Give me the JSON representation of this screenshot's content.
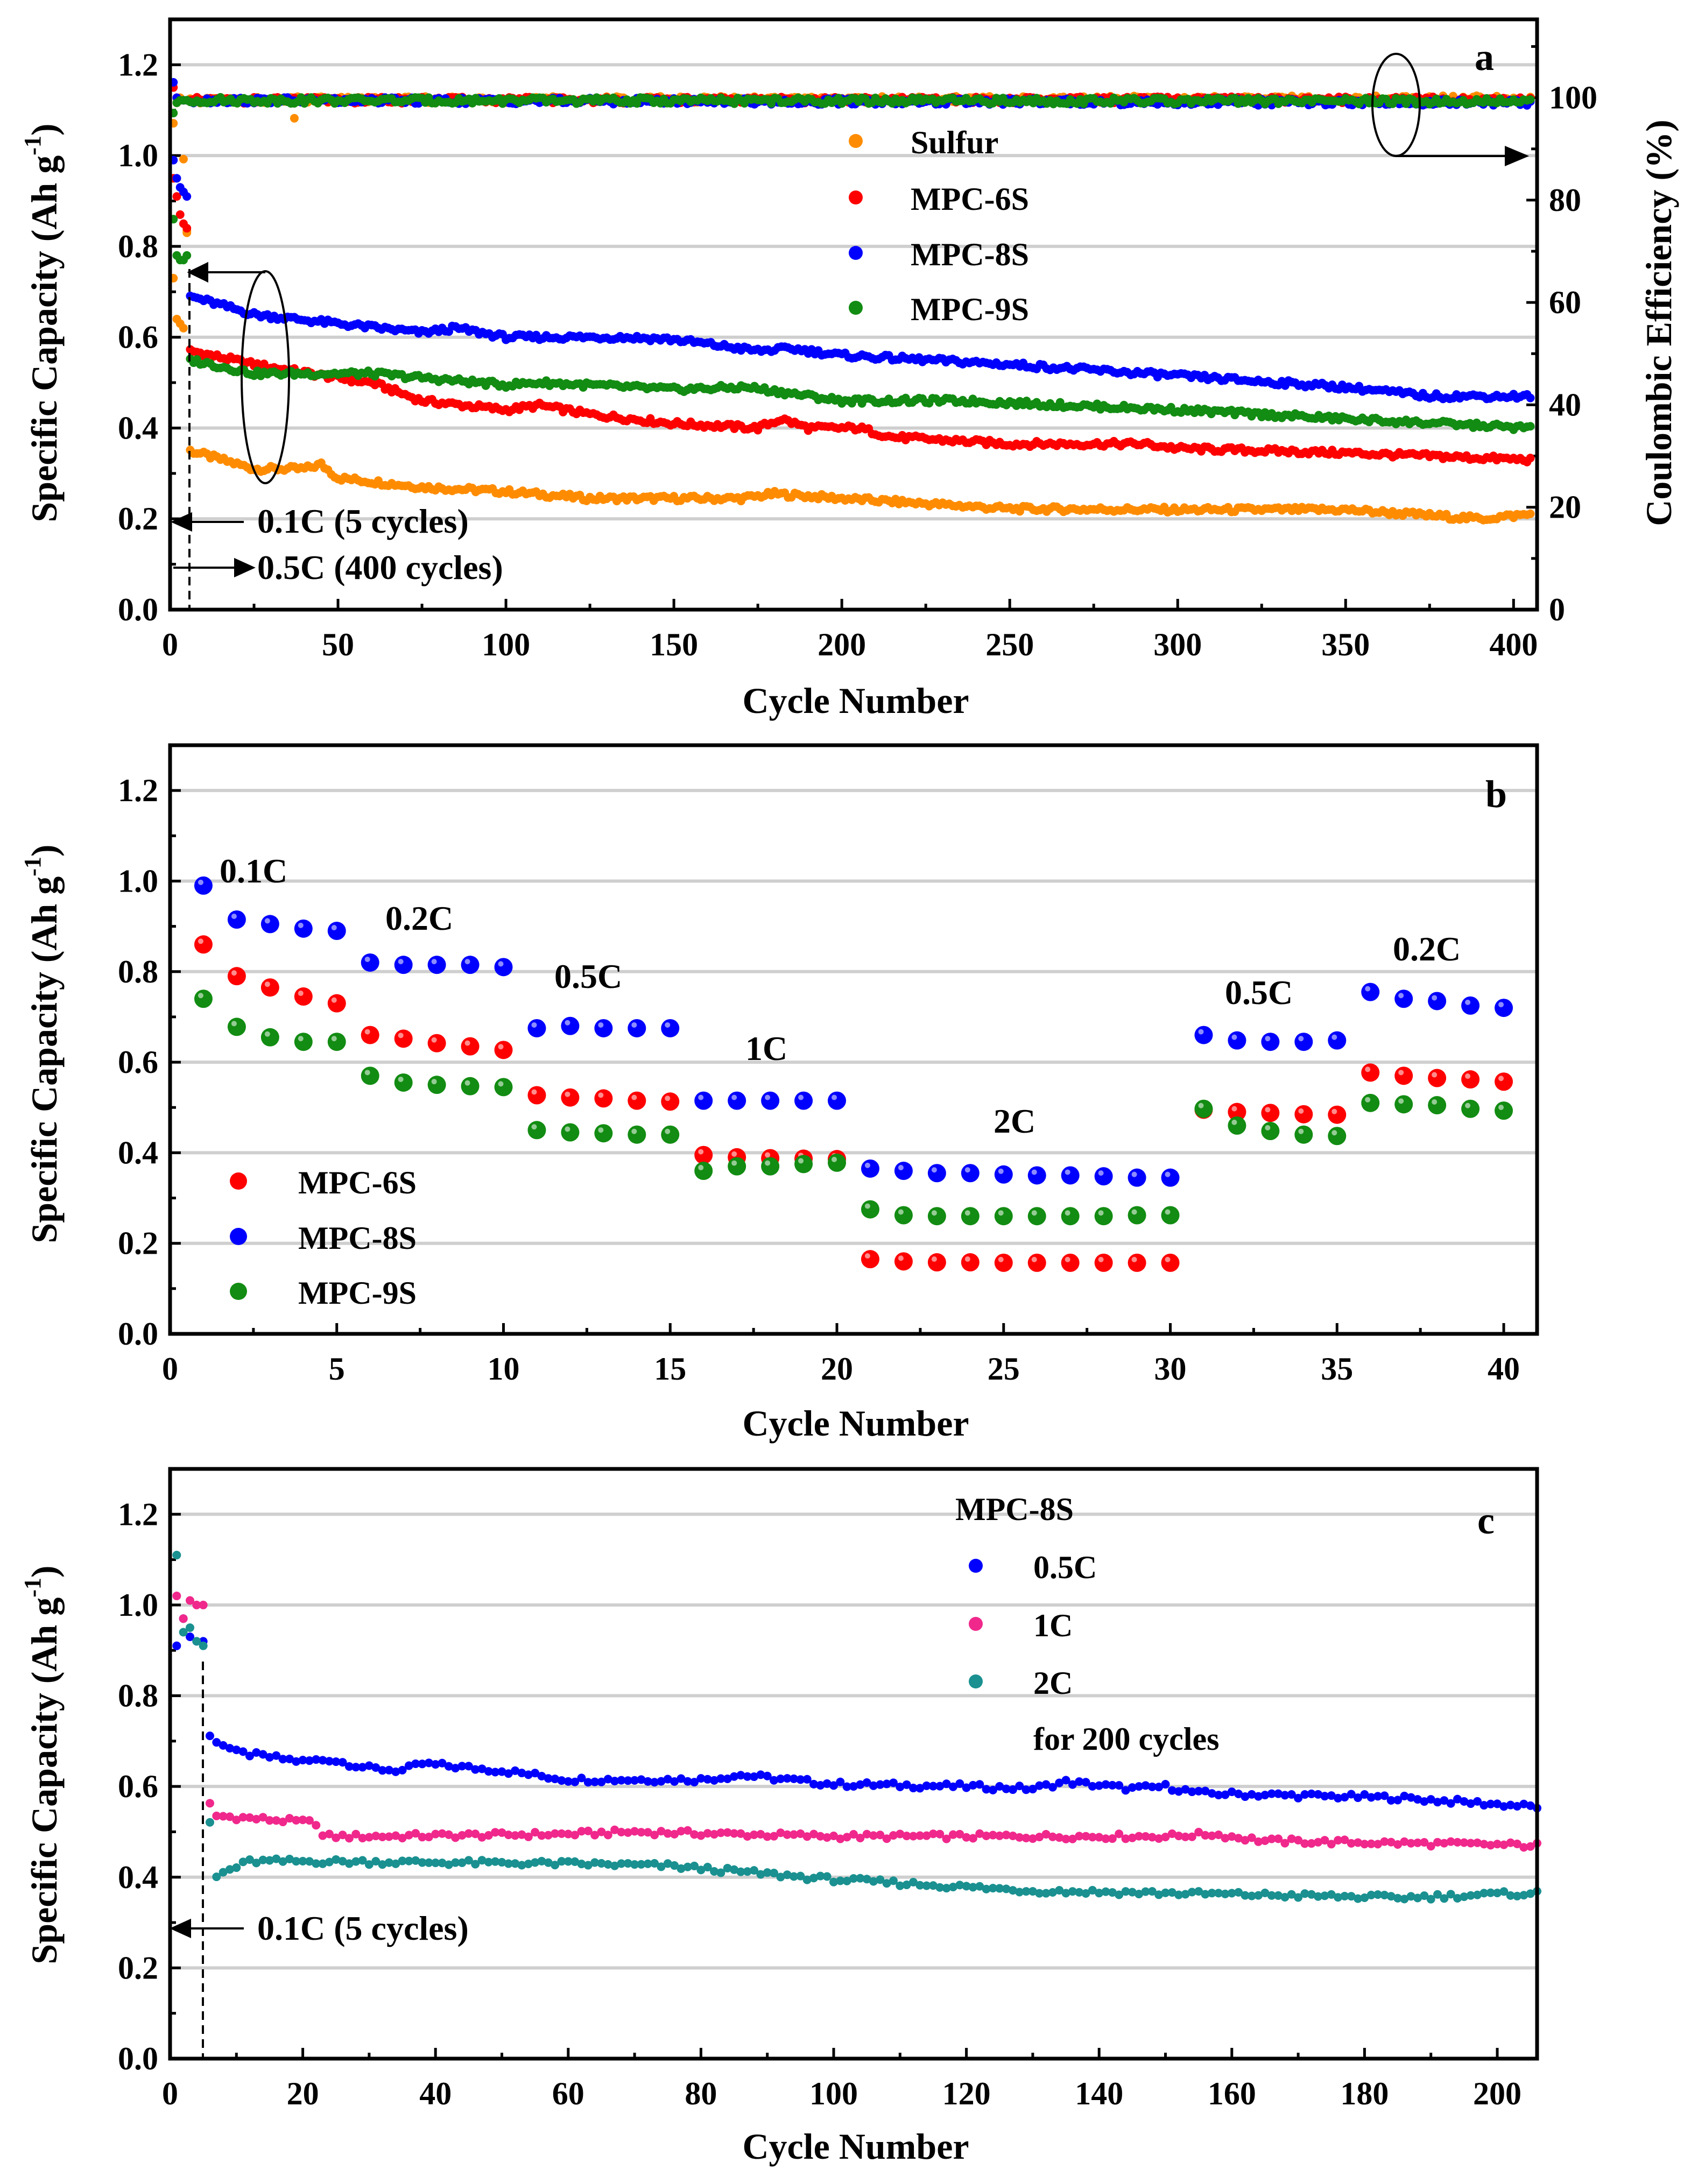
{
  "chart_data": [
    {
      "type": "scatter",
      "panel_label": "a",
      "xlabel": "Cycle Number",
      "ylabel": {
        "text": "Specific Capacity (Ah g",
        "sup": "-1",
        "end": ")"
      },
      "y2label": "Coulombic Efficiency (%)",
      "xlim": [
        0,
        407
      ],
      "ylim": [
        0,
        1.3
      ],
      "y2lim": [
        0,
        115.3
      ],
      "xticks": [
        "0",
        "50",
        "100",
        "150",
        "200",
        "250",
        "300",
        "350",
        "400"
      ],
      "yticks": [
        "0.0",
        "0.2",
        "0.4",
        "0.6",
        "0.8",
        "1.0",
        "1.2"
      ],
      "y2ticks": [
        "0",
        "20",
        "40",
        "60",
        "80",
        "100"
      ],
      "grid": true,
      "legend_placement": "top-center",
      "series": [
        {
          "name": "Sulfur",
          "color": "#ff8c00",
          "capacity": [
            [
              1,
              0.73
            ],
            [
              2,
              0.64
            ],
            [
              3,
              0.63
            ],
            [
              4,
              0.62
            ],
            [
              5,
              0.83
            ],
            [
              6,
              0.35
            ],
            [
              25,
              0.31
            ],
            [
              40,
              0.31
            ],
            [
              45,
              0.32
            ],
            [
              50,
              0.29
            ],
            [
              75,
              0.27
            ],
            [
              100,
              0.26
            ],
            [
              125,
              0.245
            ],
            [
              170,
              0.245
            ],
            [
              180,
              0.255
            ],
            [
              200,
              0.245
            ],
            [
              250,
              0.222
            ],
            [
              300,
              0.22
            ],
            [
              350,
              0.22
            ],
            [
              390,
              0.2
            ],
            [
              405,
              0.21
            ]
          ],
          "coulombic_efficiency": [
            [
              1,
              95
            ],
            [
              2,
              99
            ],
            [
              3,
              100
            ],
            [
              4,
              88
            ],
            [
              5,
              74
            ],
            [
              6,
              99.5
            ],
            [
              36,
              99.5
            ],
            [
              37,
              96
            ],
            [
              38,
              99.6
            ],
            [
              405,
              99.8
            ]
          ]
        },
        {
          "name": "MPC-6S",
          "color": "#ff0000",
          "capacity": [
            [
              1,
              0.95
            ],
            [
              2,
              0.91
            ],
            [
              3,
              0.87
            ],
            [
              4,
              0.85
            ],
            [
              5,
              0.84
            ],
            [
              6,
              0.57
            ],
            [
              25,
              0.54
            ],
            [
              50,
              0.51
            ],
            [
              60,
              0.5
            ],
            [
              75,
              0.46
            ],
            [
              100,
              0.44
            ],
            [
              110,
              0.45
            ],
            [
              125,
              0.43
            ],
            [
              150,
              0.41
            ],
            [
              175,
              0.4
            ],
            [
              182,
              0.42
            ],
            [
              190,
              0.4
            ],
            [
              205,
              0.4
            ],
            [
              215,
              0.38
            ],
            [
              250,
              0.365
            ],
            [
              290,
              0.365
            ],
            [
              300,
              0.355
            ],
            [
              350,
              0.345
            ],
            [
              405,
              0.33
            ]
          ],
          "coulombic_efficiency": [
            [
              1,
              102
            ],
            [
              2,
              100
            ],
            [
              3,
              99.5
            ],
            [
              405,
              99.6
            ]
          ]
        },
        {
          "name": "MPC-8S",
          "color": "#0000ff",
          "capacity": [
            [
              1,
              0.99
            ],
            [
              2,
              0.95
            ],
            [
              3,
              0.93
            ],
            [
              4,
              0.92
            ],
            [
              5,
              0.91
            ],
            [
              6,
              0.69
            ],
            [
              25,
              0.65
            ],
            [
              50,
              0.63
            ],
            [
              75,
              0.61
            ],
            [
              85,
              0.62
            ],
            [
              100,
              0.6
            ],
            [
              135,
              0.6
            ],
            [
              150,
              0.595
            ],
            [
              175,
              0.57
            ],
            [
              185,
              0.575
            ],
            [
              200,
              0.56
            ],
            [
              250,
              0.54
            ],
            [
              300,
              0.515
            ],
            [
              350,
              0.49
            ],
            [
              375,
              0.47
            ],
            [
              405,
              0.47
            ]
          ],
          "coulombic_efficiency": [
            [
              1,
              103
            ],
            [
              2,
              100
            ],
            [
              3,
              99.5
            ],
            [
              405,
              99
            ]
          ]
        },
        {
          "name": "MPC-9S",
          "color": "#128c12",
          "capacity": [
            [
              1,
              0.86
            ],
            [
              2,
              0.78
            ],
            [
              3,
              0.77
            ],
            [
              4,
              0.77
            ],
            [
              5,
              0.78
            ],
            [
              6,
              0.55
            ],
            [
              25,
              0.52
            ],
            [
              50,
              0.52
            ],
            [
              60,
              0.52
            ],
            [
              100,
              0.495
            ],
            [
              110,
              0.5
            ],
            [
              150,
              0.485
            ],
            [
              172,
              0.49
            ],
            [
              200,
              0.46
            ],
            [
              235,
              0.46
            ],
            [
              300,
              0.44
            ],
            [
              350,
              0.42
            ],
            [
              405,
              0.4
            ]
          ],
          "coulombic_efficiency": [
            [
              1,
              97
            ],
            [
              2,
              99
            ],
            [
              3,
              99.5
            ],
            [
              405,
              99.3
            ]
          ]
        }
      ],
      "annotations": [
        "0.1C (5 cycles)",
        "0.5C (400 cycles)"
      ]
    },
    {
      "type": "scatter",
      "panel_label": "b",
      "xlabel": "Cycle Number",
      "ylabel": {
        "text": "Specific Capacity (Ah g",
        "sup": "-1",
        "end": ")"
      },
      "xlim": [
        0,
        41
      ],
      "ylim": [
        0,
        1.3
      ],
      "xticks": [
        "0",
        "5",
        "10",
        "15",
        "20",
        "25",
        "30",
        "35",
        "40"
      ],
      "yticks": [
        "0.0",
        "0.2",
        "0.4",
        "0.6",
        "0.8",
        "1.0",
        "1.2"
      ],
      "grid": true,
      "legend_placement": "bottom-left",
      "series": [
        {
          "name": "MPC-6S",
          "color": "#ff0000",
          "values": [
            0.86,
            0.79,
            0.765,
            0.745,
            0.73,
            0.66,
            0.652,
            0.642,
            0.635,
            0.627,
            0.527,
            0.522,
            0.52,
            0.515,
            0.513,
            0.395,
            0.39,
            0.388,
            0.387,
            0.386,
            0.165,
            0.16,
            0.158,
            0.158,
            0.157,
            0.157,
            0.157,
            0.157,
            0.157,
            0.157,
            0.495,
            0.49,
            0.488,
            0.485,
            0.484,
            0.577,
            0.57,
            0.565,
            0.562,
            0.557
          ]
        },
        {
          "name": "MPC-8S",
          "color": "#0000ff",
          "values": [
            0.99,
            0.915,
            0.905,
            0.895,
            0.89,
            0.82,
            0.815,
            0.815,
            0.815,
            0.81,
            0.675,
            0.68,
            0.675,
            0.675,
            0.675,
            0.515,
            0.515,
            0.515,
            0.515,
            0.515,
            0.365,
            0.36,
            0.355,
            0.355,
            0.352,
            0.35,
            0.35,
            0.348,
            0.345,
            0.345,
            0.66,
            0.648,
            0.645,
            0.645,
            0.648,
            0.755,
            0.74,
            0.735,
            0.725,
            0.72
          ]
        },
        {
          "name": "MPC-9S",
          "color": "#128c12",
          "values": [
            0.74,
            0.678,
            0.655,
            0.645,
            0.645,
            0.57,
            0.555,
            0.55,
            0.547,
            0.545,
            0.45,
            0.445,
            0.443,
            0.44,
            0.44,
            0.36,
            0.37,
            0.37,
            0.375,
            0.378,
            0.275,
            0.262,
            0.26,
            0.26,
            0.26,
            0.26,
            0.26,
            0.26,
            0.262,
            0.262,
            0.497,
            0.46,
            0.448,
            0.44,
            0.437,
            0.51,
            0.507,
            0.505,
            0.497,
            0.493
          ]
        }
      ],
      "rate_labels": [
        "0.1C",
        "0.2C",
        "0.5C",
        "1C",
        "2C",
        "0.5C",
        "0.2C"
      ]
    },
    {
      "type": "scatter",
      "panel_label": "c",
      "xlabel": "Cycle Number",
      "ylabel": {
        "text": "Specific Capacity (Ah g",
        "sup": "-1",
        "end": ")"
      },
      "xlim": [
        0,
        206
      ],
      "ylim": [
        0,
        1.3
      ],
      "xticks": [
        "0",
        "20",
        "40",
        "60",
        "80",
        "100",
        "120",
        "140",
        "160",
        "180",
        "200"
      ],
      "yticks": [
        "0.0",
        "0.2",
        "0.4",
        "0.6",
        "0.8",
        "1.0",
        "1.2"
      ],
      "grid": true,
      "legend_placement": "top-right",
      "legend_title": "MPC-8S",
      "legend_note": "for 200 cycles",
      "series": [
        {
          "name": "0.5C",
          "color": "#0000ff",
          "capacity": [
            [
              1,
              0.91
            ],
            [
              2,
              0.97
            ],
            [
              3,
              0.93
            ],
            [
              4,
              0.92
            ],
            [
              5,
              0.92
            ],
            [
              6,
              0.71
            ],
            [
              10,
              0.675
            ],
            [
              20,
              0.655
            ],
            [
              24,
              0.66
            ],
            [
              30,
              0.64
            ],
            [
              35,
              0.635
            ],
            [
              38,
              0.65
            ],
            [
              50,
              0.635
            ],
            [
              60,
              0.615
            ],
            [
              80,
              0.615
            ],
            [
              86,
              0.625
            ],
            [
              100,
              0.605
            ],
            [
              120,
              0.6
            ],
            [
              130,
              0.595
            ],
            [
              135,
              0.61
            ],
            [
              145,
              0.595
            ],
            [
              150,
              0.6
            ],
            [
              155,
              0.585
            ],
            [
              185,
              0.575
            ],
            [
              206,
              0.555
            ]
          ]
        },
        {
          "name": "1C",
          "color": "#f0288c",
          "capacity": [
            [
              1,
              1.02
            ],
            [
              2,
              0.97
            ],
            [
              3,
              1.01
            ],
            [
              4,
              1.0
            ],
            [
              5,
              1.0
            ],
            [
              6,
              0.56
            ],
            [
              7,
              0.535
            ],
            [
              22,
              0.52
            ],
            [
              23,
              0.49
            ],
            [
              30,
              0.49
            ],
            [
              60,
              0.495
            ],
            [
              70,
              0.5
            ],
            [
              100,
              0.49
            ],
            [
              150,
              0.49
            ],
            [
              157,
              0.495
            ],
            [
              165,
              0.48
            ],
            [
              206,
              0.47
            ]
          ]
        },
        {
          "name": "2C",
          "color": "#1a9090",
          "capacity": [
            [
              1,
              1.11
            ],
            [
              2,
              0.94
            ],
            [
              3,
              0.95
            ],
            [
              4,
              0.92
            ],
            [
              5,
              0.91
            ],
            [
              6,
              0.52
            ],
            [
              7,
              0.4
            ],
            [
              8,
              0.41
            ],
            [
              12,
              0.435
            ],
            [
              20,
              0.435
            ],
            [
              60,
              0.43
            ],
            [
              75,
              0.425
            ],
            [
              100,
              0.395
            ],
            [
              130,
              0.37
            ],
            [
              150,
              0.365
            ],
            [
              185,
              0.355
            ],
            [
              206,
              0.365
            ]
          ]
        }
      ],
      "annotations": [
        "0.1C (5 cycles)"
      ]
    }
  ]
}
